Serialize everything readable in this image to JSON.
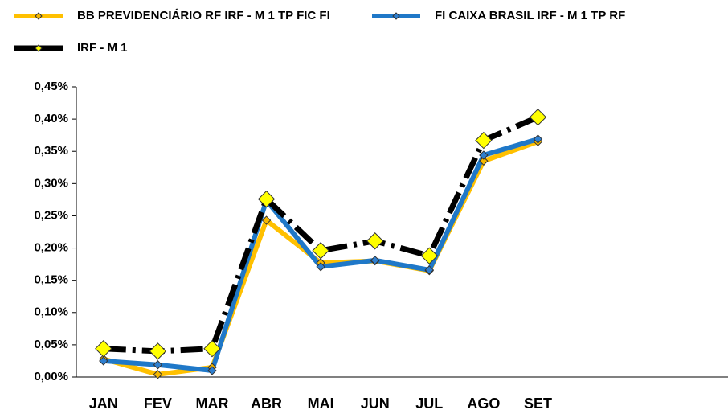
{
  "chart_data": {
    "type": "line",
    "categories": [
      "JAN",
      "FEV",
      "MAR",
      "ABR",
      "MAI",
      "JUN",
      "JUL",
      "AGO",
      "SET",
      null,
      null,
      null
    ],
    "series": [
      {
        "name": "BB PREVIDENCIÁRIO RF IRF - M 1 TP FIC FI",
        "color": "#FFC000",
        "marker_color": "#F5B800",
        "values": [
          0.028,
          0.004,
          0.015,
          0.243,
          0.177,
          0.18,
          0.165,
          0.335,
          0.365,
          null,
          null,
          null
        ]
      },
      {
        "name": "FI CAIXA BRASIL IRF - M 1 TP RF",
        "color": "#1F78C8",
        "marker_color": "#2E7FD0",
        "values": [
          0.025,
          0.019,
          0.01,
          0.274,
          0.171,
          0.181,
          0.166,
          0.344,
          0.369,
          null,
          null,
          null
        ]
      },
      {
        "name": "IRF - M 1",
        "color": "#000000",
        "marker_color": "#FFFF00",
        "values": [
          0.044,
          0.04,
          0.044,
          0.276,
          0.196,
          0.211,
          0.188,
          0.367,
          0.403,
          null,
          null,
          null
        ]
      }
    ],
    "ylim": [
      0,
      0.45
    ],
    "yticks": [
      {
        "value": 0,
        "label": "0,00%"
      },
      {
        "value": 0.05,
        "label": "0,05%"
      },
      {
        "value": 0.1,
        "label": "0,10%"
      },
      {
        "value": 0.15,
        "label": "0,15%"
      },
      {
        "value": 0.2,
        "label": "0,20%"
      },
      {
        "value": 0.25,
        "label": "0,25%"
      },
      {
        "value": 0.3,
        "label": "0,30%"
      },
      {
        "value": 0.35,
        "label": "0,35%"
      },
      {
        "value": 0.4,
        "label": "0,40%"
      },
      {
        "value": 0.45,
        "label": "0,45%"
      }
    ],
    "grid": false,
    "legend": "top"
  }
}
